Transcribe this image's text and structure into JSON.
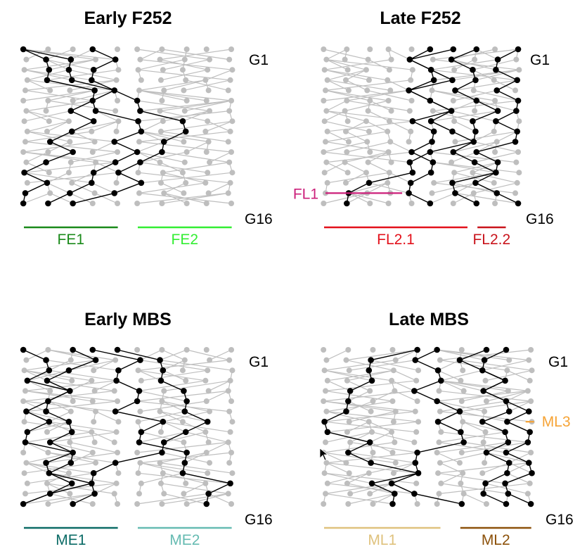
{
  "colors": {
    "background": "#ffffff",
    "inactive": "#bebebe",
    "highlight": "#000000"
  },
  "generation_top_label": "G1",
  "generation_bottom_label": "G16",
  "generations": 16,
  "panels": [
    {
      "title": "Early F252",
      "ancestor_columns": [
        [
          0,
          1,
          2,
          3,
          4
        ],
        [
          5,
          6,
          7,
          8,
          9
        ]
      ],
      "highlight": [
        [
          4,
          2,
          0
        ],
        [
          0,
          5,
          2
        ],
        [
          0,
          7,
          3
        ]
      ],
      "families": [
        {
          "label": "FE1",
          "color": "#1a8a1a",
          "columns": [
            0,
            4
          ]
        },
        {
          "label": "FE2",
          "color": "#33ee33",
          "columns": [
            5,
            9
          ]
        }
      ]
    },
    {
      "title": "Late F252",
      "ancestor_columns": [
        [
          0,
          1,
          2,
          3,
          4
        ],
        [
          5,
          6,
          7,
          8,
          9
        ]
      ],
      "highlight": [
        [
          5,
          5,
          4
        ],
        [
          4,
          6,
          8
        ],
        [
          6,
          8,
          0
        ],
        [
          8,
          9,
          6
        ]
      ],
      "families": [
        {
          "label": "FL1",
          "color": "#cc1f7a",
          "columns": [
            0,
            3.6
          ],
          "level": 14,
          "style": "side"
        },
        {
          "label": "FL2.1",
          "color": "#e3111b",
          "columns": [
            0,
            6.6
          ]
        },
        {
          "label": "FL2.2",
          "color": "#c9141c",
          "columns": [
            7.2,
            8.4
          ]
        }
      ]
    },
    {
      "title": "Early MBS",
      "ancestor_columns": [
        [
          0,
          1,
          2,
          3,
          4
        ],
        [
          5,
          6,
          7,
          8,
          9
        ]
      ],
      "highlight": [
        [
          3,
          0,
          3
        ],
        [
          0,
          2,
          1
        ],
        [
          5,
          8,
          0
        ],
        [
          4,
          5,
          9
        ]
      ],
      "families": [
        {
          "label": "ME1",
          "color": "#0b6b66",
          "columns": [
            0,
            4
          ]
        },
        {
          "label": "ME2",
          "color": "#66bbb2",
          "columns": [
            5,
            9
          ]
        }
      ]
    },
    {
      "title": "Late MBS",
      "ancestor_columns": [
        [
          0,
          1,
          2,
          3,
          4
        ],
        [
          5,
          6,
          7,
          8,
          9
        ]
      ],
      "highlight": [
        [
          3,
          0,
          5
        ],
        [
          4,
          6,
          2
        ],
        [
          6,
          9,
          8
        ],
        [
          7,
          8,
          7
        ]
      ],
      "families": [
        {
          "label": "ML1",
          "color": "#dfc27d",
          "columns": [
            0,
            5
          ]
        },
        {
          "label": "ML2",
          "color": "#8c510a",
          "columns": [
            6,
            9
          ]
        },
        {
          "label": "ML3",
          "color": "#f6a335",
          "columns": [
            9,
            9
          ],
          "level": 7,
          "style": "side"
        }
      ]
    }
  ]
}
